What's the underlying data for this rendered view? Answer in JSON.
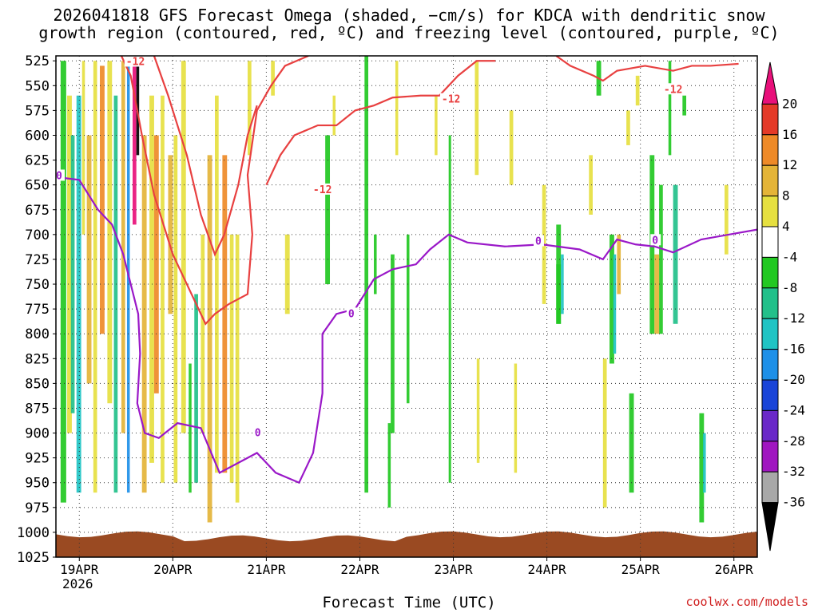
{
  "title_line1": "2026041818 GFS Forecast Omega (shaded, −cm/s) for KDCA with dendritic snow",
  "title_line2": "growth region (contoured, red, ºC) and freezing level (contoured, purple, ºC)",
  "credit": "coolwx.com/models",
  "chart_data": {
    "type": "heatmap",
    "xlabel": "Forecast Time (UTC)",
    "x_ticks": [
      "19APR",
      "20APR",
      "21APR",
      "22APR",
      "23APR",
      "24APR",
      "25APR",
      "26APR"
    ],
    "x_year_label": "2026",
    "x_range": [
      "2026-04-18T18",
      "2026-04-26T06"
    ],
    "y_ticks": [
      525,
      550,
      575,
      600,
      625,
      650,
      675,
      700,
      725,
      750,
      775,
      800,
      825,
      850,
      875,
      900,
      925,
      950,
      975,
      1000,
      1025
    ],
    "y_range_hPa": [
      520,
      1025
    ],
    "y_inverted": true,
    "grid": "dotted",
    "colorbar": {
      "labels": [
        "20",
        "16",
        "12",
        "8",
        "4",
        "-4",
        "-8",
        "-12",
        "-16",
        "-20",
        "-24",
        "-28",
        "-32",
        "-36"
      ],
      "colors": [
        "#e8107a",
        "#e43a28",
        "#ee8a28",
        "#e4b438",
        "#e6e040",
        "#ffffff",
        "#22c822",
        "#22c08a",
        "#20c4c4",
        "#1e90e8",
        "#1a44d8",
        "#6a28c8",
        "#a016c0",
        "#a8a8a8",
        "#000000"
      ]
    },
    "contours": {
      "dgz_minus12": {
        "label": "-12",
        "color": "#e84040",
        "labels_at": [
          {
            "x": "2026-04-19T12",
            "p": 526
          },
          {
            "x": "2026-04-21T12",
            "p": 655
          },
          {
            "x": "2026-04-22T21",
            "p": 564
          },
          {
            "x": "2026-04-25T06",
            "p": 554
          }
        ]
      },
      "freezing_0": {
        "label": "0",
        "color": "#9a18c8",
        "labels_at": [
          {
            "x": "2026-04-18T18",
            "p": 641
          },
          {
            "x": "2026-04-20T21",
            "p": 900
          },
          {
            "x": "2026-04-21T21",
            "p": 780
          },
          {
            "x": "2026-04-23T21",
            "p": 707
          },
          {
            "x": "2026-04-25T03",
            "p": 706
          }
        ]
      }
    },
    "terrain_color": "#9a4a22"
  }
}
